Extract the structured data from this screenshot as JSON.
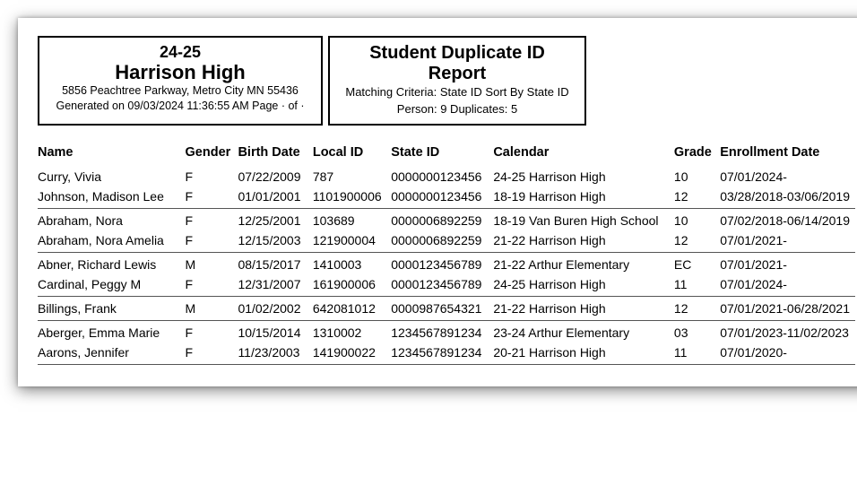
{
  "header": {
    "year": "24-25",
    "school": "Harrison High",
    "address": "5856 Peachtree Parkway, Metro City MN 55436",
    "generated": "Generated on 09/03/2024 11:36:55 AM Page · of  ·",
    "report_title": "Student Duplicate ID Report",
    "criteria": "Matching Criteria: State ID Sort By State ID",
    "counts": "Person: 9 Duplicates: 5"
  },
  "columns": {
    "name": "Name",
    "gender": "Gender",
    "birth": "Birth Date",
    "local": "Local ID",
    "state": "State ID",
    "calendar": "Calendar",
    "grade": "Grade",
    "enroll": "Enrollment Date"
  },
  "groups": [
    {
      "rows": [
        {
          "name": "Curry, Vivia",
          "gender": "F",
          "birth": "07/22/2009",
          "local": "787",
          "state": "0000000123456",
          "calendar": "24-25 Harrison High",
          "grade": "10",
          "enroll": "07/01/2024-"
        },
        {
          "name": "Johnson, Madison Lee",
          "gender": "F",
          "birth": "01/01/2001",
          "local": "1101900006",
          "state": "0000000123456",
          "calendar": "18-19 Harrison High",
          "grade": "12",
          "enroll": "03/28/2018-03/06/2019"
        }
      ]
    },
    {
      "rows": [
        {
          "name": "Abraham, Nora",
          "gender": "F",
          "birth": "12/25/2001",
          "local": "103689",
          "state": "0000006892259",
          "calendar": "18-19 Van Buren High School",
          "grade": "10",
          "enroll": "07/02/2018-06/14/2019"
        },
        {
          "name": "Abraham, Nora Amelia",
          "gender": "F",
          "birth": "12/15/2003",
          "local": "121900004",
          "state": "0000006892259",
          "calendar": "21-22 Harrison High",
          "grade": "12",
          "enroll": "07/01/2021-"
        }
      ]
    },
    {
      "rows": [
        {
          "name": "Abner, Richard Lewis",
          "gender": "M",
          "birth": "08/15/2017",
          "local": "1410003",
          "state": "0000123456789",
          "calendar": "21-22 Arthur Elementary",
          "grade": "EC",
          "enroll": "07/01/2021-"
        },
        {
          "name": "Cardinal, Peggy M",
          "gender": "F",
          "birth": "12/31/2007",
          "local": "161900006",
          "state": "0000123456789",
          "calendar": "24-25 Harrison High",
          "grade": "11",
          "enroll": "07/01/2024-"
        }
      ]
    },
    {
      "rows": [
        {
          "name": "Billings, Frank",
          "gender": "M",
          "birth": "01/02/2002",
          "local": "642081012",
          "state": "0000987654321",
          "calendar": "21-22 Harrison High",
          "grade": "12",
          "enroll": "07/01/2021-06/28/2021"
        }
      ]
    },
    {
      "rows": [
        {
          "name": "Aberger, Emma Marie",
          "gender": "F",
          "birth": "10/15/2014",
          "local": "1310002",
          "state": "1234567891234",
          "calendar": "23-24 Arthur Elementary",
          "grade": "03",
          "enroll": "07/01/2023-11/02/2023"
        },
        {
          "name": "Aarons, Jennifer",
          "gender": "F",
          "birth": "11/23/2003",
          "local": "141900022",
          "state": "1234567891234",
          "calendar": "20-21 Harrison High",
          "grade": "11",
          "enroll": "07/01/2020-"
        }
      ]
    }
  ]
}
